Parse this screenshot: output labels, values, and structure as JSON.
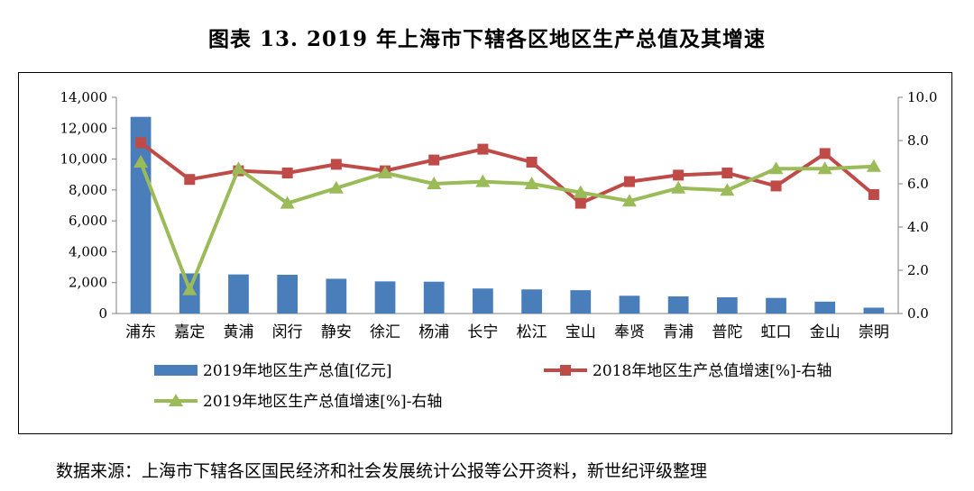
{
  "title": "图表 13. 2019 年上海市下辖各区地区生产总值及其增速",
  "source": "数据来源：上海市下辖各区国民经济和社会发展统计公报等公开资料，新世纪评级整理",
  "chart_data": {
    "type": "bar+line",
    "categories": [
      "浦东",
      "嘉定",
      "黄浦",
      "闵行",
      "静安",
      "徐汇",
      "杨浦",
      "长宁",
      "松江",
      "宝山",
      "奉贤",
      "青浦",
      "普陀",
      "虹口",
      "金山",
      "崇明"
    ],
    "series": [
      {
        "name": "2019年地区生产总值[亿元]",
        "type": "bar",
        "axis": "left",
        "color": "#4a7ebb",
        "values": [
          12734,
          2600,
          2530,
          2510,
          2250,
          2080,
          2060,
          1620,
          1560,
          1510,
          1150,
          1110,
          1050,
          1010,
          770,
          380
        ]
      },
      {
        "name": "2018年地区生产总值增速[%]-右轴",
        "type": "line",
        "axis": "right",
        "color": "#be4b48",
        "marker": "square",
        "values": [
          7.9,
          6.2,
          6.6,
          6.5,
          6.9,
          6.6,
          7.1,
          7.6,
          7.0,
          5.1,
          6.1,
          6.4,
          6.5,
          5.9,
          7.4,
          5.5
        ]
      },
      {
        "name": "2019年地区生产总值增速[%]-右轴",
        "type": "line",
        "axis": "right",
        "color": "#9bbb59",
        "marker": "triangle",
        "values": [
          7.0,
          1.1,
          6.7,
          5.1,
          5.8,
          6.5,
          6.0,
          6.1,
          6.0,
          5.6,
          5.2,
          5.8,
          5.7,
          6.7,
          6.7,
          6.8
        ]
      }
    ],
    "ylim_left": [
      0,
      14000
    ],
    "yticks_left": [
      "0",
      "2,000",
      "4,000",
      "6,000",
      "8,000",
      "10,000",
      "12,000",
      "14,000"
    ],
    "ylim_right": [
      0,
      10
    ],
    "yticks_right": [
      "0.0",
      "2.0",
      "4.0",
      "6.0",
      "8.0",
      "10.0"
    ],
    "grid": false,
    "legend": "bottom"
  }
}
